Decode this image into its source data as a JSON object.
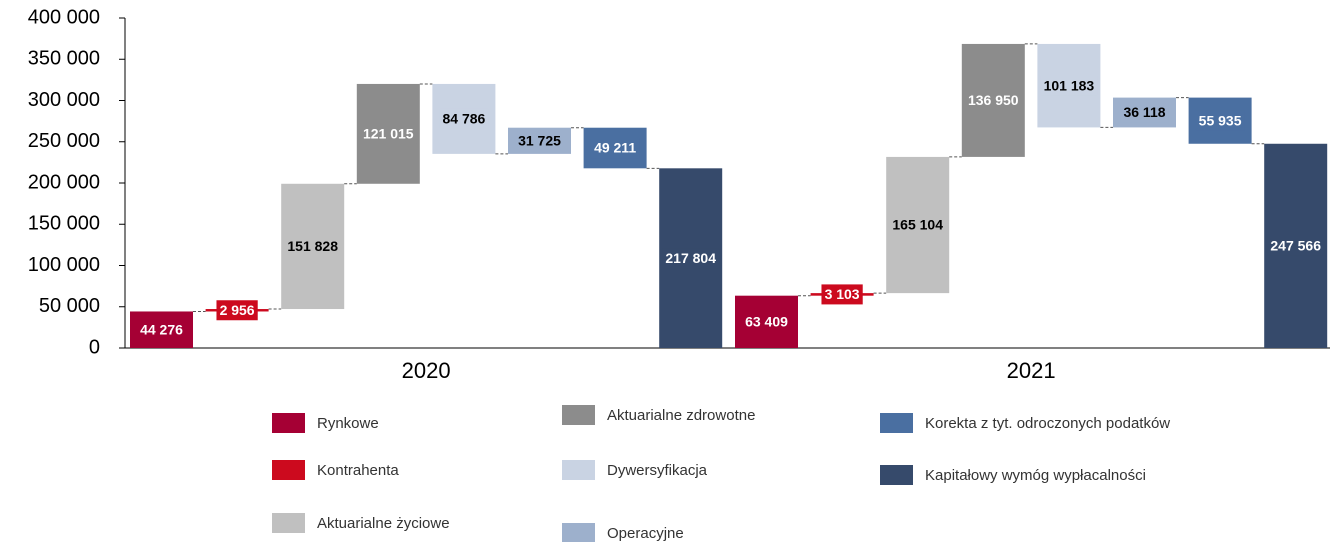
{
  "chart_data": {
    "type": "waterfall",
    "categories": [
      "2020",
      "2021"
    ],
    "ylim": [
      0,
      400000
    ],
    "yticks": [
      0,
      {
        "value": 50000,
        "label": "50 000"
      },
      {
        "value": 100000,
        "label": "100 000"
      },
      {
        "value": 150000,
        "label": "150 000"
      },
      {
        "value": 200000,
        "label": "200 000"
      },
      {
        "value": 250000,
        "label": "250 000"
      },
      {
        "value": 300000,
        "label": "300 000"
      },
      {
        "value": 350000,
        "label": "350 000"
      },
      {
        "value": 400000,
        "label": "400 000"
      }
    ],
    "series": [
      {
        "name": "Rynkowe",
        "color": "#a50034",
        "label_color": "#ffffff",
        "values": [
          44276,
          63409
        ],
        "value_labels": [
          "44 276",
          "63 409"
        ]
      },
      {
        "name": "Kontrahenta",
        "color": "#cc0a1e",
        "label_color": "#ffffff",
        "values": [
          2956,
          3103
        ],
        "value_labels": [
          "2 956",
          "3 103"
        ]
      },
      {
        "name": "Aktuarialne życiowe",
        "color": "#c0c0c0",
        "label_color": "#000000",
        "values": [
          151828,
          165104
        ],
        "value_labels": [
          "151 828",
          "165 104"
        ]
      },
      {
        "name": "Aktuarialne zdrowotne",
        "color": "#8c8c8c",
        "label_color": "#ffffff",
        "values": [
          121015,
          136950
        ],
        "value_labels": [
          "121 015",
          "136 950"
        ]
      },
      {
        "name": "Dywersyfikacja",
        "color": "#c9d3e3",
        "label_color": "#000000",
        "values": [
          -84786,
          -101183
        ],
        "value_labels": [
          "84 786",
          "101 183"
        ]
      },
      {
        "name": "Operacyjne",
        "color": "#9db0cc",
        "label_color": "#000000",
        "values": [
          31725,
          36118
        ],
        "value_labels": [
          "31 725",
          "36 118"
        ]
      },
      {
        "name": "Korekta z tyt. odroczonych podatków",
        "color": "#4a6fa1",
        "label_color": "#ffffff",
        "values": [
          -49211,
          -55935
        ],
        "value_labels": [
          "49 211",
          "55 935"
        ]
      },
      {
        "name": "Kapitałowy wymóg wypłacalności",
        "color": "#364a6b",
        "label_color": "#ffffff",
        "values": [
          217804,
          247566
        ],
        "value_labels": [
          "217 804",
          "247 566"
        ]
      }
    ]
  }
}
